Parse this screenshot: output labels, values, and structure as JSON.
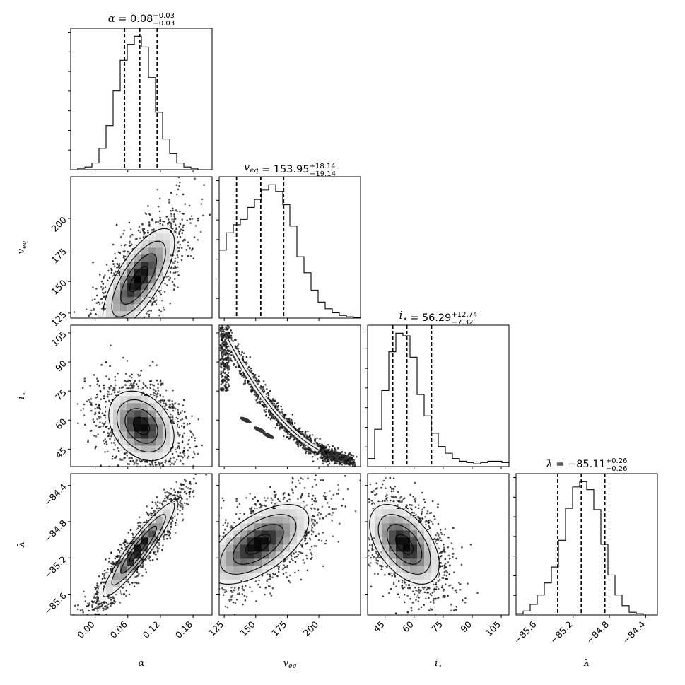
{
  "chart_data": {
    "type": "corner",
    "params": [
      {
        "key": "alpha",
        "label": "α",
        "range": [
          -0.045,
          0.215
        ],
        "ticks": [
          0.0,
          0.06,
          0.12,
          0.18
        ],
        "tick_labels": [
          "0.00",
          "0.06",
          "0.12",
          "0.18"
        ],
        "median": 0.08,
        "plus": 0.03,
        "minus": 0.03,
        "q16": 0.054,
        "q50": 0.082,
        "q84": 0.114
      },
      {
        "key": "veq",
        "label": "v",
        "label_sub": "eq",
        "range": [
          121,
          233
        ],
        "ticks": [
          125,
          150,
          175,
          200
        ],
        "tick_labels": [
          "125",
          "150",
          "175",
          "200"
        ],
        "median": 153.95,
        "plus": 18.14,
        "minus": 19.14,
        "q16": 134.8,
        "q50": 153.95,
        "q84": 172.1
      },
      {
        "key": "istar",
        "label": "i",
        "label_sub": "⋆",
        "range": [
          36,
          109
        ],
        "ticks": [
          45,
          60,
          75,
          90,
          105
        ],
        "tick_labels": [
          "45",
          "60",
          "75",
          "90",
          "105"
        ],
        "median": 56.29,
        "plus": 12.74,
        "minus": 7.32,
        "q16": 49.0,
        "q50": 56.29,
        "q84": 69.0
      },
      {
        "key": "lambda",
        "label": "λ",
        "range": [
          -85.83,
          -84.27
        ],
        "ticks": [
          -85.6,
          -85.2,
          -84.8,
          -84.4
        ],
        "tick_labels": [
          "−85.6",
          "−85.2",
          "−84.8",
          "−84.4"
        ],
        "median": -85.11,
        "plus": 0.26,
        "minus": 0.26,
        "q16": -85.37,
        "q50": -85.11,
        "q84": -84.85
      }
    ],
    "titles": {
      "alpha": {
        "name": "α",
        "value": "0.08",
        "plus": "+0.03",
        "minus": "−0.03"
      },
      "veq": {
        "name": "v",
        "sub": "eq",
        "value": "153.95",
        "plus": "+18.14",
        "minus": "−19.14"
      },
      "istar": {
        "name": "i",
        "sub": "⋆",
        "value": "56.29",
        "plus": "+12.74",
        "minus": "−7.32"
      },
      "lambda": {
        "name": "λ",
        "value": "−85.11",
        "plus": "+0.26",
        "minus": "−0.26"
      }
    },
    "histograms": {
      "alpha": {
        "edges_start": -0.045,
        "bin_width": 0.013,
        "counts": [
          0,
          0.01,
          0.02,
          0.05,
          0.16,
          0.33,
          0.59,
          0.82,
          0.94,
          1.0,
          0.92,
          0.69,
          0.43,
          0.23,
          0.12,
          0.05,
          0.02,
          0.01,
          0,
          0
        ]
      },
      "veq": {
        "edges_start": 121,
        "bin_width": 5.6,
        "counts": [
          0.51,
          0.64,
          0.7,
          0.74,
          0.83,
          0.89,
          0.96,
          1.0,
          0.95,
          0.85,
          0.69,
          0.46,
          0.34,
          0.21,
          0.12,
          0.07,
          0.04,
          0.02,
          0.01,
          0.005
        ]
      },
      "istar": {
        "edges_start": 36,
        "bin_width": 3.65,
        "counts": [
          0.06,
          0.28,
          0.57,
          0.86,
          1.0,
          0.98,
          0.82,
          0.54,
          0.38,
          0.25,
          0.15,
          0.1,
          0.06,
          0.04,
          0.03,
          0.02,
          0.03,
          0.04,
          0.04,
          0.03
        ]
      },
      "lambda": {
        "edges_start": -85.83,
        "bin_width": 0.078,
        "counts": [
          0.01,
          0.03,
          0.08,
          0.15,
          0.24,
          0.36,
          0.56,
          0.8,
          0.96,
          1.0,
          0.94,
          0.79,
          0.53,
          0.3,
          0.15,
          0.07,
          0.02,
          0.01,
          0,
          0
        ]
      }
    },
    "pairs": [
      {
        "x": "alpha",
        "y": "veq",
        "mean": [
          0.08,
          152
        ],
        "sd": [
          0.033,
          20
        ],
        "rho": 0.72
      },
      {
        "x": "alpha",
        "y": "istar",
        "mean": [
          0.085,
          57
        ],
        "sd": [
          0.03,
          9
        ],
        "rho": -0.3
      },
      {
        "x": "veq",
        "y": "istar",
        "curve": true
      },
      {
        "x": "alpha",
        "y": "lambda",
        "mean": [
          0.08,
          -85.11
        ],
        "sd": [
          0.033,
          0.26
        ],
        "rho": 0.93
      },
      {
        "x": "veq",
        "y": "lambda",
        "mean": [
          152,
          -85.05
        ],
        "sd": [
          20,
          0.22
        ],
        "rho": 0.6
      },
      {
        "x": "istar",
        "y": "lambda",
        "mean": [
          55,
          -85.05
        ],
        "sd": [
          9,
          0.22
        ],
        "rho": -0.5
      }
    ],
    "grid": false,
    "legend": "none"
  }
}
